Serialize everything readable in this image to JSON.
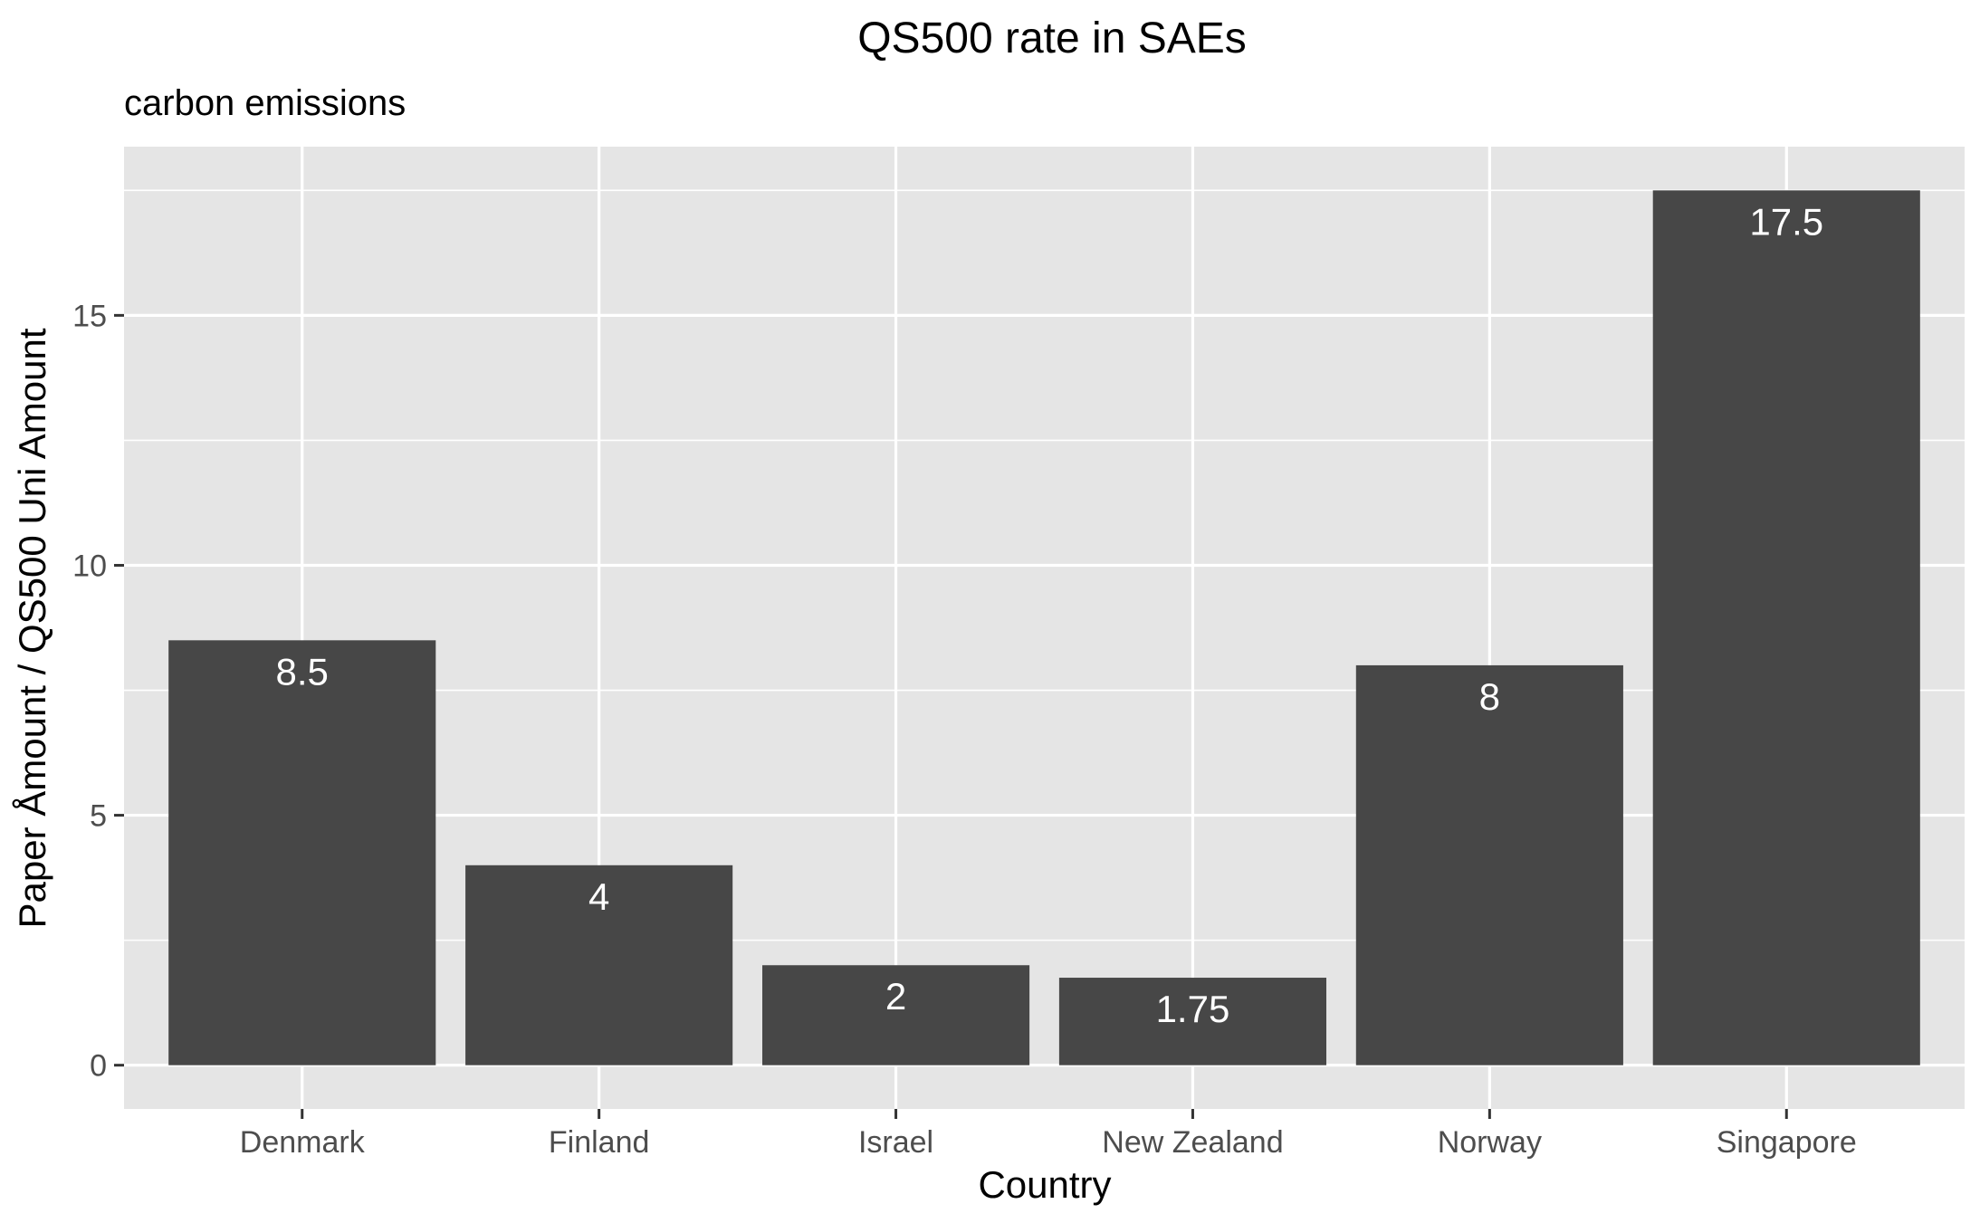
{
  "chart_data": {
    "type": "bar",
    "title": "QS500 rate in SAEs",
    "subtitle": "carbon emissions",
    "xlabel": "Country",
    "ylabel": "Paper Åmount / QS500 Uni Amount",
    "categories": [
      "Denmark",
      "Finland",
      "Israel",
      "New Zealand",
      "Norway",
      "Singapore"
    ],
    "values": [
      8.5,
      4,
      2,
      1.75,
      8,
      17.5
    ],
    "data_labels": [
      "8.5",
      "4",
      "2",
      "1.75",
      "8",
      "17.5"
    ],
    "ylim": [
      -0.875,
      18.375
    ],
    "yticks": [
      0,
      5,
      10,
      15
    ],
    "ytick_labels": [
      "0",
      "5",
      "10",
      "15"
    ],
    "grid": true,
    "colors": {
      "panel_background": "#e5e5e5",
      "grid_line": "#ffffff",
      "bar_fill": "#474747",
      "data_label": "#ffffff",
      "tick_text": "#4d4d4d",
      "tick_mark": "#333333"
    }
  }
}
